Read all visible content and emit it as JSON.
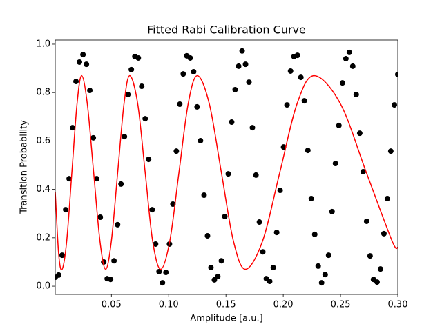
{
  "chart_data": {
    "type": "scatter",
    "title": "Fitted Rabi Calibration Curve",
    "xlabel": "Amplitude [a.u.]",
    "ylabel": "Transition Probability",
    "xlim": [
      0.001,
      0.3
    ],
    "ylim": [
      -0.034,
      1.017
    ],
    "xticks": [
      0.05,
      {
        "value": 0.1,
        "label": "0.10"
      },
      0.15,
      {
        "value": 0.2,
        "label": "0.20"
      },
      0.25,
      {
        "value": 0.3,
        "label": "0.30"
      }
    ],
    "yticks": [
      {
        "value": 0,
        "label": "0.0"
      },
      0.2,
      0.4,
      0.6,
      0.8,
      {
        "value": 1,
        "label": "1.0"
      }
    ],
    "series": [
      {
        "type": "scatter",
        "color": "#000000",
        "x": [
          0.001,
          0.004,
          0.007,
          0.0101,
          0.0131,
          0.0161,
          0.0191,
          0.0221,
          0.0252,
          0.0282,
          0.0312,
          0.0342,
          0.0372,
          0.0403,
          0.0433,
          0.0463,
          0.0493,
          0.0523,
          0.0554,
          0.0584,
          0.0614,
          0.0644,
          0.0674,
          0.0705,
          0.0735,
          0.0765,
          0.0795,
          0.0825,
          0.0856,
          0.0886,
          0.0916,
          0.0946,
          0.0976,
          0.1007,
          0.1037,
          0.1067,
          0.1097,
          0.1127,
          0.1158,
          0.1188,
          0.1218,
          0.1248,
          0.1278,
          0.1309,
          0.1339,
          0.1369,
          0.1399,
          0.1429,
          0.146,
          0.149,
          0.152,
          0.155,
          0.158,
          0.1611,
          0.1641,
          0.1671,
          0.1701,
          0.1731,
          0.1762,
          0.1792,
          0.1822,
          0.1852,
          0.1882,
          0.1913,
          0.1943,
          0.1973,
          0.2003,
          0.2033,
          0.2064,
          0.2094,
          0.2124,
          0.2154,
          0.2184,
          0.2215,
          0.2245,
          0.2275,
          0.2305,
          0.2335,
          0.2366,
          0.2396,
          0.2426,
          0.2456,
          0.2486,
          0.2517,
          0.2547,
          0.2577,
          0.2607,
          0.2637,
          0.2668,
          0.2698,
          0.2728,
          0.2758,
          0.2788,
          0.2819,
          0.2849,
          0.2879,
          0.2909,
          0.2939,
          0.297,
          0.3
        ],
        "values": [
          0.037,
          0.046,
          0.128,
          0.316,
          0.444,
          0.655,
          0.846,
          0.926,
          0.957,
          0.917,
          0.809,
          0.613,
          0.444,
          0.285,
          0.1,
          0.031,
          0.028,
          0.105,
          0.254,
          0.422,
          0.618,
          0.792,
          0.895,
          0.949,
          0.943,
          0.826,
          0.692,
          0.524,
          0.316,
          0.174,
          0.06,
          0.014,
          0.057,
          0.174,
          0.339,
          0.558,
          0.752,
          0.877,
          0.952,
          0.943,
          0.886,
          0.741,
          0.601,
          0.376,
          0.208,
          0.077,
          0.026,
          0.04,
          0.105,
          0.288,
          0.464,
          0.678,
          0.812,
          0.909,
          0.972,
          0.917,
          0.843,
          0.655,
          0.459,
          0.265,
          0.142,
          0.031,
          0.02,
          0.077,
          0.222,
          0.396,
          0.575,
          0.749,
          0.889,
          0.949,
          0.954,
          0.863,
          0.766,
          0.561,
          0.362,
          0.214,
          0.083,
          0.014,
          0.048,
          0.128,
          0.308,
          0.507,
          0.664,
          0.84,
          0.94,
          0.966,
          0.909,
          0.792,
          0.632,
          0.473,
          0.268,
          0.125,
          0.028,
          0.017,
          0.071,
          0.217,
          0.362,
          0.558,
          0.749,
          0.875
        ]
      },
      {
        "type": "line",
        "color": "#ff0000",
        "x": [
          0.001,
          0.004,
          0.007,
          0.011,
          0.0155,
          0.02,
          0.024,
          0.029,
          0.0345,
          0.04,
          0.045,
          0.05,
          0.0555,
          0.061,
          0.066,
          0.073,
          0.0795,
          0.086,
          0.093,
          0.101,
          0.109,
          0.117,
          0.125,
          0.1355,
          0.146,
          0.1565,
          0.167,
          0.182,
          0.197,
          0.212,
          0.227,
          0.25,
          0.2725,
          0.295,
          0.3
        ],
        "values": [
          0.39,
          0.132,
          0.07,
          0.187,
          0.47,
          0.753,
          0.87,
          0.753,
          0.47,
          0.187,
          0.07,
          0.187,
          0.47,
          0.753,
          0.87,
          0.753,
          0.47,
          0.187,
          0.07,
          0.187,
          0.47,
          0.753,
          0.87,
          0.753,
          0.47,
          0.187,
          0.07,
          0.187,
          0.47,
          0.753,
          0.87,
          0.753,
          0.47,
          0.187,
          0.16
        ]
      }
    ]
  }
}
